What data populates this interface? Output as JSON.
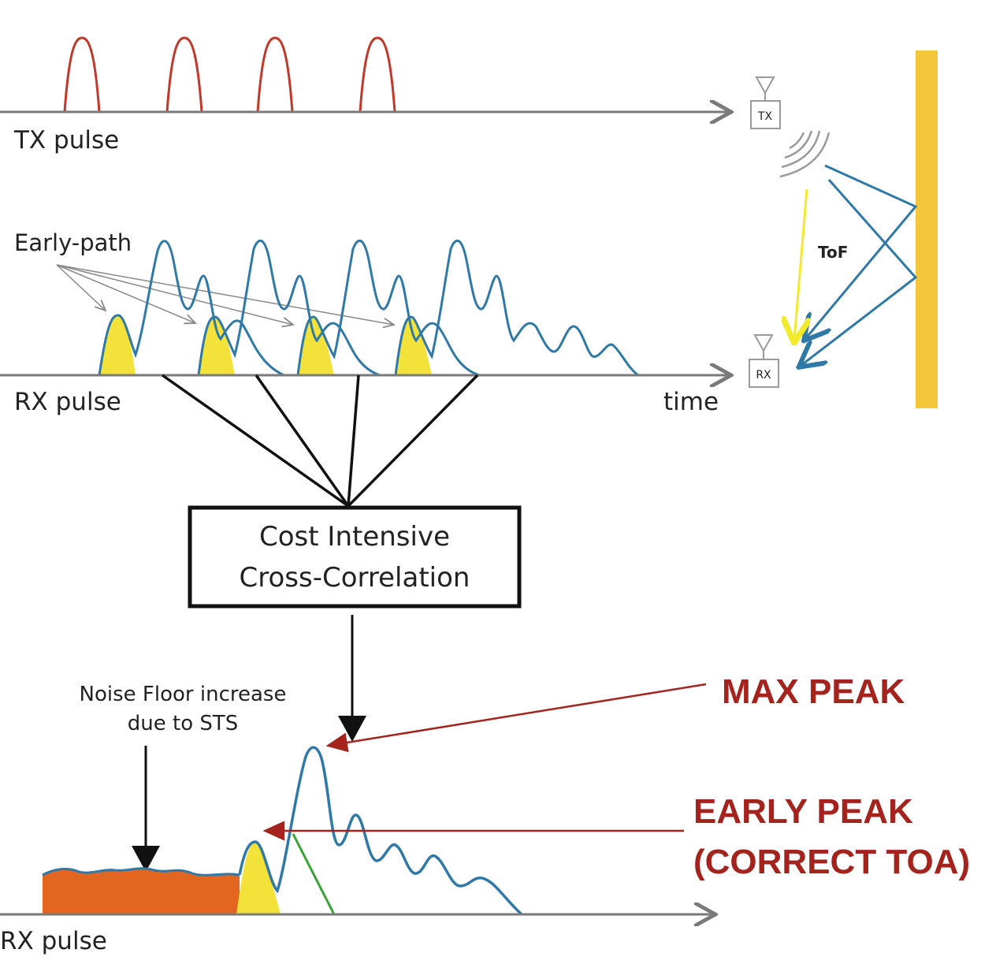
{
  "labels": {
    "tx_pulse": "TX pulse",
    "early_path": "Early-path",
    "rx_pulse_top": "RX pulse",
    "time": "time",
    "tof": "ToF",
    "tx_antenna": "TX",
    "rx_antenna": "RX",
    "box_line1": "Cost Intensive",
    "box_line2": "Cross-Correlation",
    "noise_line1": "Noise Floor increase",
    "noise_line2": "due to STS",
    "max_peak": "MAX PEAK",
    "early_peak_line1": "EARLY PEAK",
    "early_peak_line2": "(CORRECT TOA)",
    "rx_pulse_bottom": "RX pulse"
  },
  "colors": {
    "tx_pulse": "#c0392b",
    "rx_wave": "#2f79a8",
    "early_fill": "#f2e23a",
    "noise_fill": "#e2661f",
    "wall": "#f3c63c",
    "tof_arrow": "#f2ea2c",
    "annotation_red": "#a5231d",
    "axis": "#7a7a7a",
    "green_line": "#3aa335"
  }
}
